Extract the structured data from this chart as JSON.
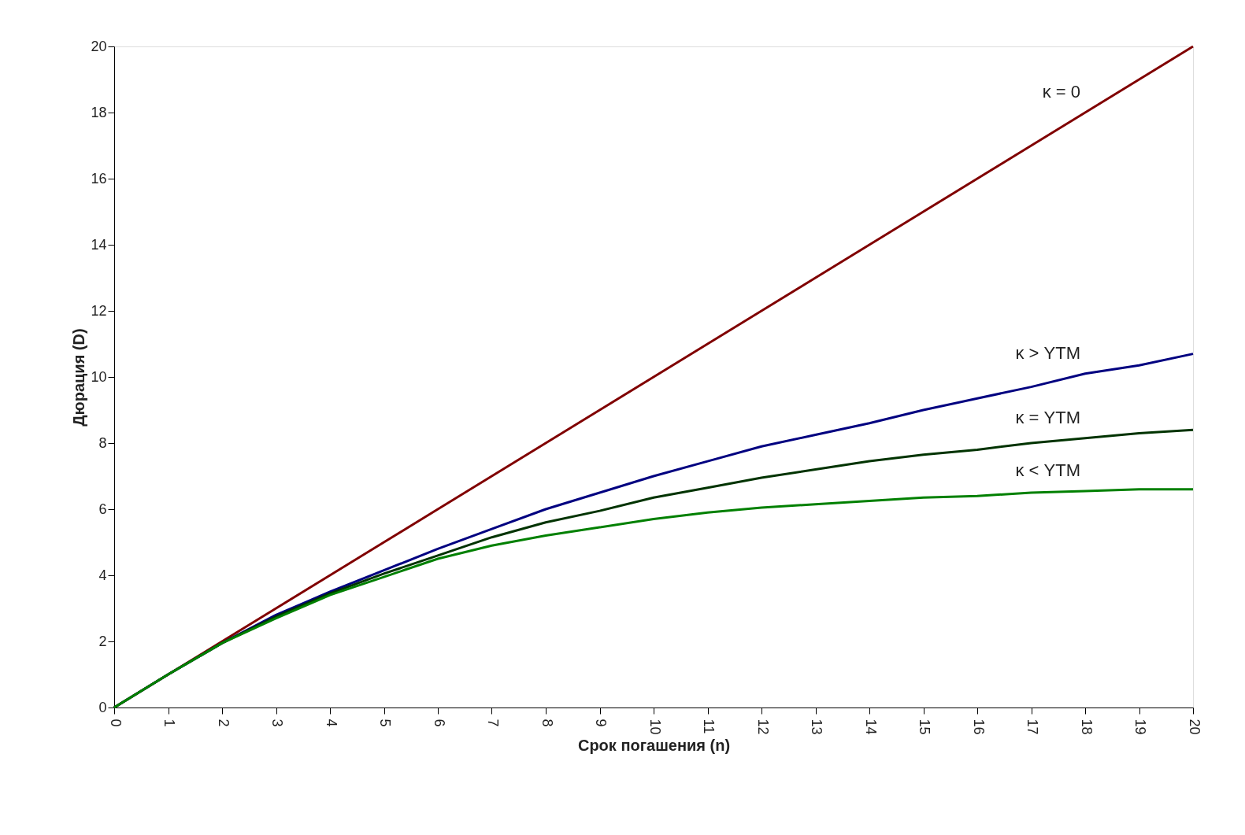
{
  "chart_data": {
    "type": "line",
    "xlabel": "Срок погашения (n)",
    "ylabel": "Дюрация (D)",
    "x": [
      0,
      1,
      2,
      3,
      4,
      5,
      6,
      7,
      8,
      9,
      10,
      11,
      12,
      13,
      14,
      15,
      16,
      17,
      18,
      19,
      20
    ],
    "xlim": [
      0,
      20
    ],
    "xticks": [
      0,
      1,
      2,
      3,
      4,
      5,
      6,
      7,
      8,
      9,
      10,
      11,
      12,
      13,
      14,
      15,
      16,
      17,
      18,
      19,
      20
    ],
    "ylim": [
      0,
      20
    ],
    "yticks": [
      0,
      2,
      4,
      6,
      8,
      10,
      12,
      14,
      16,
      18,
      20
    ],
    "grid": false,
    "legend": false,
    "marker": "none",
    "line_style": "solid",
    "series": [
      {
        "name": "κ = 0",
        "color": "#800000",
        "values": [
          0,
          1,
          2,
          3,
          4,
          5,
          6,
          7,
          8,
          9,
          10,
          11,
          12,
          13,
          14,
          15,
          16,
          17,
          18,
          19,
          20
        ]
      },
      {
        "name": "κ > YTM",
        "color": "#000080",
        "values": [
          0,
          1.0,
          1.95,
          2.8,
          3.5,
          4.15,
          4.8,
          5.4,
          6.0,
          6.5,
          7.0,
          7.45,
          7.9,
          8.25,
          8.6,
          9.0,
          9.35,
          9.7,
          10.1,
          10.35,
          10.7
        ]
      },
      {
        "name": "κ = YTM",
        "color": "#003300",
        "values": [
          0,
          1.0,
          1.95,
          2.75,
          3.45,
          4.05,
          4.6,
          5.15,
          5.6,
          5.95,
          6.35,
          6.65,
          6.95,
          7.2,
          7.45,
          7.65,
          7.8,
          8.0,
          8.15,
          8.3,
          8.4
        ]
      },
      {
        "name": "κ < YTM",
        "color": "#008000",
        "values": [
          0,
          1.0,
          1.95,
          2.7,
          3.4,
          3.95,
          4.5,
          4.9,
          5.2,
          5.45,
          5.7,
          5.9,
          6.05,
          6.15,
          6.25,
          6.35,
          6.4,
          6.5,
          6.55,
          6.6,
          6.6
        ]
      }
    ]
  }
}
